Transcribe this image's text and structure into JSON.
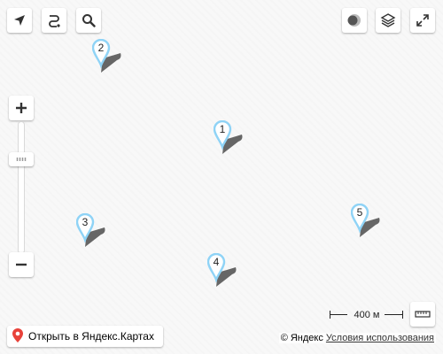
{
  "controls": {
    "geolocation_icon": "location-arrow-icon",
    "route_icon": "route-icon",
    "search_icon": "search-icon",
    "traffic_icon": "traffic-icon",
    "layers_icon": "layers-icon",
    "fullscreen_icon": "fullscreen-icon",
    "zoom_in_icon": "plus-icon",
    "zoom_out_icon": "minus-icon",
    "ruler_icon": "ruler-icon"
  },
  "markers": [
    {
      "label": "1"
    },
    {
      "label": "2"
    },
    {
      "label": "3"
    },
    {
      "label": "4"
    },
    {
      "label": "5"
    }
  ],
  "scale": {
    "label": "400 м"
  },
  "open_in_yandex": {
    "label": "Открыть в Яндекс.Картах",
    "icon": "pin-icon",
    "icon_color": "#e8423a"
  },
  "copyright": {
    "owner": "© Яндекс",
    "terms": "Условия использования"
  },
  "colors": {
    "marker_stroke": "#8fd3f6",
    "marker_shadow": "#666666",
    "map_bg": "#f8f8f8"
  }
}
